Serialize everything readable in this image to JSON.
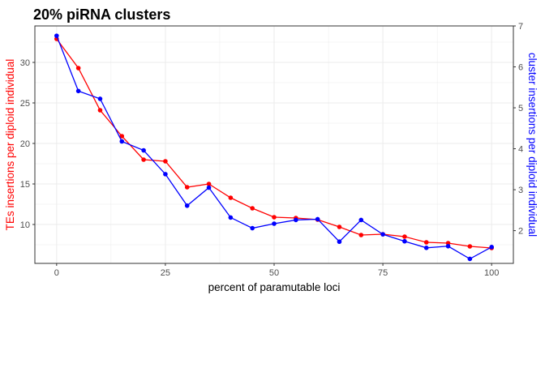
{
  "chart_data": {
    "type": "line",
    "title": "20% piRNA clusters",
    "xlabel": "percent of paramutable loci",
    "ylabel_left": "TEs insertions per diploid individual",
    "ylabel_right": "cluster insertions per diploid individual",
    "xlim": [
      -5,
      105
    ],
    "ylim_left": [
      5.2,
      34.5
    ],
    "ylim_right": [
      1.2,
      7.0
    ],
    "x_ticks": [
      0,
      25,
      50,
      75,
      100
    ],
    "y_ticks_left": [
      10,
      15,
      20,
      25,
      30
    ],
    "y_ticks_right": [
      2,
      3,
      4,
      5,
      6,
      7
    ],
    "grid": true,
    "x": [
      0,
      5,
      10,
      15,
      20,
      25,
      30,
      35,
      40,
      45,
      50,
      55,
      60,
      65,
      70,
      75,
      80,
      85,
      90,
      95,
      100
    ],
    "series": [
      {
        "name": "TEs insertions per diploid individual",
        "axis": "left",
        "color": "#ff0000",
        "values": [
          32.9,
          29.3,
          24.1,
          20.9,
          18.0,
          17.8,
          14.6,
          15.0,
          13.3,
          12.0,
          10.9,
          10.8,
          10.6,
          9.7,
          8.7,
          8.8,
          8.5,
          7.8,
          7.7,
          7.3,
          7.1
        ]
      },
      {
        "name": "cluster insertions per diploid individual",
        "axis": "right",
        "color": "#0000ff",
        "values": [
          6.76,
          5.41,
          5.22,
          4.18,
          3.96,
          3.38,
          2.61,
          3.05,
          2.32,
          2.06,
          2.17,
          2.26,
          2.28,
          1.73,
          2.26,
          1.91,
          1.74,
          1.58,
          1.62,
          1.31,
          1.6
        ]
      }
    ]
  }
}
